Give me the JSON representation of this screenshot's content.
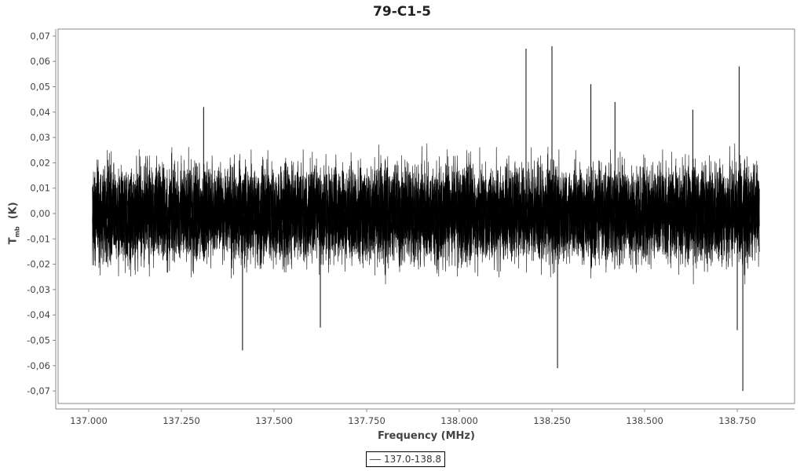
{
  "chart_data": {
    "type": "line",
    "title": "79-C1-5",
    "xlabel": "Frequency (MHz)",
    "ylabel": {
      "main": "T",
      "sub": "mb",
      "unit": "(K)"
    },
    "xlim": [
      136.915,
      138.9
    ],
    "ylim": [
      -0.078,
      0.073
    ],
    "x_ticks": [
      "137.000",
      "137.250",
      "137.500",
      "137.750",
      "138.000",
      "138.250",
      "138.500",
      "138.750"
    ],
    "x_tick_values": [
      137.0,
      137.25,
      137.5,
      137.75,
      138.0,
      138.25,
      138.5,
      138.75
    ],
    "y_ticks": [
      "0,07",
      "0,06",
      "0,05",
      "0,04",
      "0,03",
      "0,02",
      "0,01",
      "0,00",
      "-0,01",
      "-0,02",
      "-0,03",
      "-0,04",
      "-0,05",
      "-0,06",
      "-0,07"
    ],
    "y_tick_values": [
      0.07,
      0.06,
      0.05,
      0.04,
      0.03,
      0.02,
      0.01,
      0.0,
      -0.01,
      -0.02,
      -0.03,
      -0.04,
      -0.05,
      -0.06,
      -0.07
    ],
    "grid": false,
    "legend": {
      "position": "bottom",
      "entries": [
        "137.0-138.8"
      ]
    },
    "series": [
      {
        "name": "137.0-138.8",
        "color": "#000000",
        "x_range": [
          137.01,
          138.81
        ],
        "noise_band_K": [
          -0.03,
          0.03
        ],
        "peaks": [
          {
            "x": 137.31,
            "y": 0.042
          },
          {
            "x": 138.18,
            "y": 0.065
          },
          {
            "x": 138.25,
            "y": 0.066
          },
          {
            "x": 138.355,
            "y": 0.051
          },
          {
            "x": 138.42,
            "y": 0.044
          },
          {
            "x": 138.63,
            "y": 0.041
          },
          {
            "x": 138.755,
            "y": 0.058
          },
          {
            "x": 137.415,
            "y": -0.054
          },
          {
            "x": 137.625,
            "y": -0.045
          },
          {
            "x": 138.265,
            "y": -0.061
          },
          {
            "x": 138.75,
            "y": -0.046
          },
          {
            "x": 138.765,
            "y": -0.07
          }
        ]
      }
    ]
  }
}
